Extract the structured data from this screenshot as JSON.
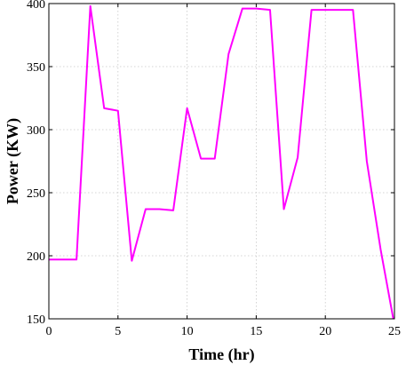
{
  "chart_data": {
    "type": "line",
    "title": "",
    "xlabel": "Time (hr)",
    "ylabel": "Power (KW)",
    "xlim": [
      0,
      25
    ],
    "ylim": [
      150,
      400
    ],
    "xticks": [
      0,
      5,
      10,
      15,
      20,
      25
    ],
    "yticks": [
      150,
      200,
      250,
      300,
      350,
      400
    ],
    "grid": true,
    "series": [
      {
        "color": "#ff00ff",
        "x": [
          0,
          2,
          3,
          4,
          5,
          6,
          7,
          8,
          9,
          10,
          11,
          12,
          13,
          14,
          15,
          16,
          17,
          18,
          19,
          20,
          21,
          22,
          23,
          24,
          25
        ],
        "y": [
          197,
          197,
          398,
          317,
          315,
          196,
          237,
          237,
          236,
          317,
          277,
          277,
          360,
          396,
          396,
          395,
          237,
          278,
          395,
          395,
          395,
          395,
          275,
          205,
          145
        ]
      }
    ]
  }
}
